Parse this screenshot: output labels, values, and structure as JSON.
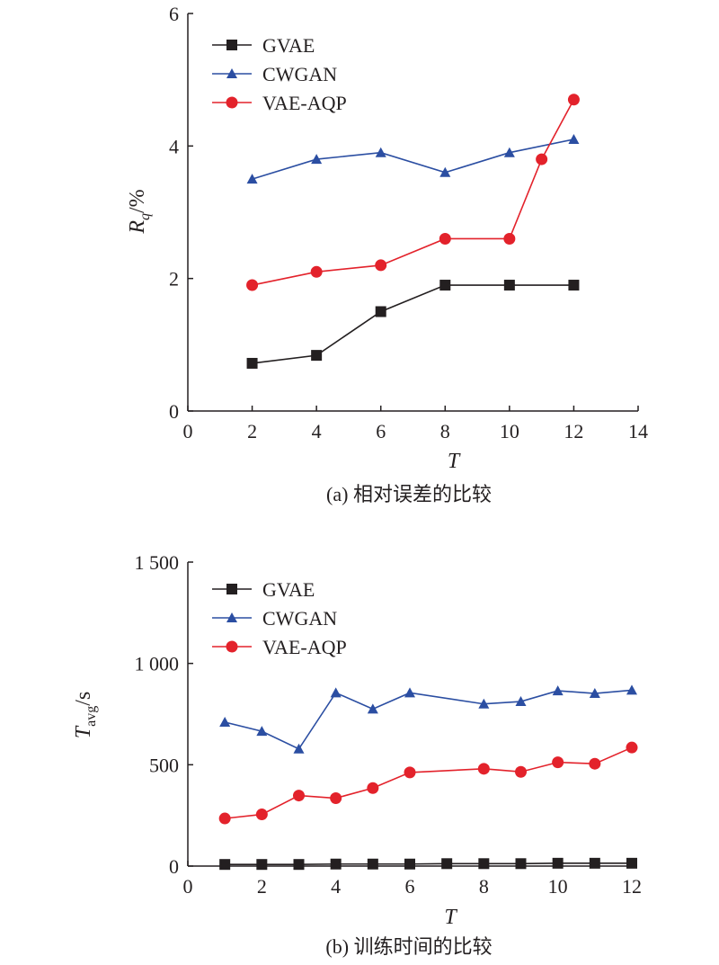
{
  "colors": {
    "axis": "#231f20",
    "GVAE": "#231f20",
    "CWGAN": "#2b4ea2",
    "VAE-AQP": "#e3222b"
  },
  "chart_data": [
    {
      "type": "line",
      "caption": "(a) 相对误差的比较",
      "xlabel": "T",
      "ylabel_main": "R",
      "ylabel_sub": "q",
      "ylabel_suffix": "/%",
      "xlim": [
        0,
        14
      ],
      "ylim": [
        0,
        6
      ],
      "xticks": [
        0,
        2,
        4,
        6,
        8,
        10,
        12,
        14
      ],
      "yticks": [
        0,
        2,
        4,
        6
      ],
      "xtick_labels": [
        "0",
        "2",
        "4",
        "6",
        "8",
        "10",
        "12",
        "14"
      ],
      "ytick_labels": [
        "0",
        "2",
        "4",
        "6"
      ],
      "legend_position": "top-left",
      "series": [
        {
          "name": "GVAE",
          "marker": "square",
          "x": [
            2,
            4,
            6,
            8,
            10,
            12
          ],
          "y": [
            0.72,
            0.84,
            1.5,
            1.9,
            1.9,
            1.9
          ]
        },
        {
          "name": "CWGAN",
          "marker": "triangle",
          "x": [
            2,
            4,
            6,
            8,
            10,
            12
          ],
          "y": [
            3.5,
            3.8,
            3.9,
            3.6,
            3.9,
            4.1
          ]
        },
        {
          "name": "VAE-AQP",
          "marker": "circle",
          "x": [
            2,
            4,
            6,
            8,
            10,
            11,
            12
          ],
          "y": [
            1.9,
            2.1,
            2.2,
            2.6,
            2.6,
            3.8,
            4.7
          ]
        }
      ]
    },
    {
      "type": "line",
      "caption": "(b) 训练时间的比较",
      "xlabel": "T",
      "ylabel_main": "T",
      "ylabel_sub": "avg",
      "ylabel_suffix": "/s",
      "xlim": [
        0,
        12
      ],
      "ylim": [
        0,
        1500
      ],
      "xticks": [
        0,
        2,
        4,
        6,
        8,
        10,
        12
      ],
      "yticks": [
        0,
        500,
        1000,
        1500
      ],
      "xtick_labels": [
        "0",
        "2",
        "4",
        "6",
        "8",
        "10",
        "12"
      ],
      "ytick_labels": [
        "0",
        "500",
        "1 000",
        "1 500"
      ],
      "legend_position": "top-left",
      "series": [
        {
          "name": "GVAE",
          "marker": "square",
          "x": [
            1,
            2,
            3,
            4,
            5,
            6,
            7,
            8,
            9,
            10,
            11,
            12
          ],
          "y": [
            8,
            8,
            8,
            10,
            10,
            10,
            12,
            12,
            12,
            14,
            14,
            14
          ]
        },
        {
          "name": "CWGAN",
          "marker": "triangle",
          "x": [
            1,
            2,
            3,
            4,
            5,
            6,
            8,
            9,
            10,
            11,
            12
          ],
          "y": [
            710,
            665,
            578,
            855,
            775,
            855,
            800,
            812,
            865,
            852,
            868
          ]
        },
        {
          "name": "VAE-AQP",
          "marker": "circle",
          "x": [
            1,
            2,
            3,
            4,
            5,
            6,
            8,
            9,
            10,
            11,
            12
          ],
          "y": [
            235,
            255,
            348,
            335,
            385,
            462,
            480,
            465,
            512,
            505,
            585
          ]
        }
      ]
    }
  ]
}
